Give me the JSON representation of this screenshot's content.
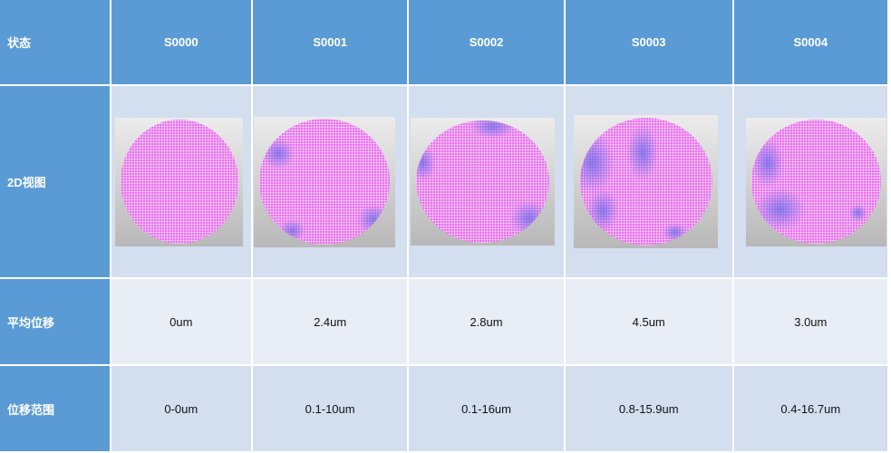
{
  "header": {
    "label": "状态",
    "samples": [
      "S0000",
      "S0001",
      "S0002",
      "S0003",
      "S0004"
    ]
  },
  "rows": {
    "view": {
      "label": "2D视图"
    },
    "avg": {
      "label": "平均位移",
      "values": [
        "0um",
        "2.4um",
        "2.8um",
        "4.5um",
        "3.0um"
      ]
    },
    "range": {
      "label": "位移范围",
      "values": [
        "0-0um",
        "0.1-10um",
        "0.1-16um",
        "0.8-15.9um",
        "0.4-16.7um"
      ]
    }
  },
  "colors": {
    "header": "#5b9bd5",
    "cell_dark": "#d3deef",
    "cell_light": "#e9eef6",
    "wafer": "#e970ee",
    "deviation": "#6e6ee6"
  }
}
